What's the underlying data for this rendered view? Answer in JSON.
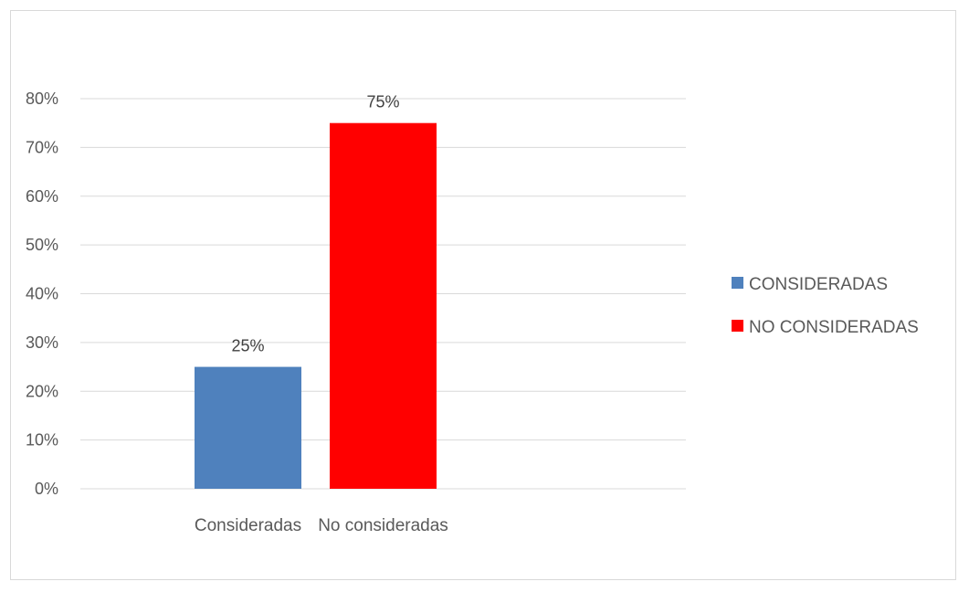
{
  "chart_data": {
    "type": "bar",
    "categories": [
      "Consideradas",
      "No consideradas"
    ],
    "series": [
      {
        "name": "CONSIDERADAS",
        "values": [
          0.25,
          null
        ],
        "color": "#4f81bd"
      },
      {
        "name": "NO CONSIDERADAS",
        "values": [
          null,
          0.75
        ],
        "color": "#ff0000"
      }
    ],
    "data_labels": [
      "25%",
      "75%"
    ],
    "y_ticks": [
      "0%",
      "10%",
      "20%",
      "30%",
      "40%",
      "50%",
      "60%",
      "70%",
      "80%"
    ],
    "ylim": [
      0,
      0.8
    ],
    "title": "",
    "xlabel": "",
    "ylabel": "",
    "grid": true,
    "legend_position": "right"
  }
}
